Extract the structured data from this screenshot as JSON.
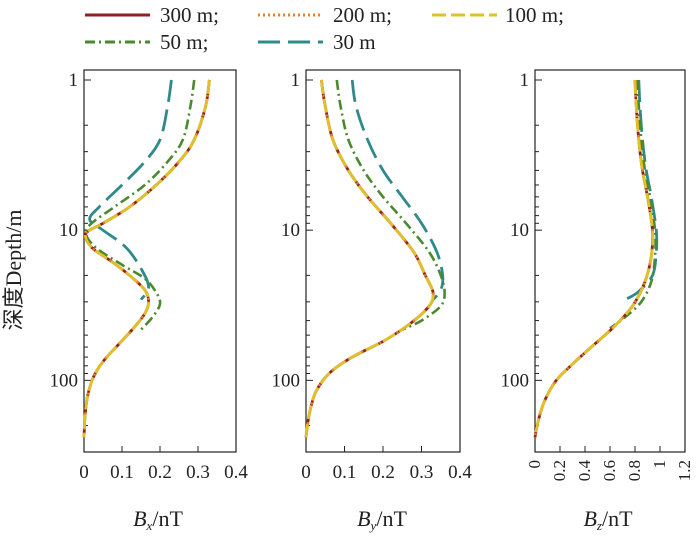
{
  "chart_data": [
    {
      "type": "line",
      "xlabel_symbol": "B",
      "xlabel_sub": "x",
      "xlabel_unit": "/nT",
      "xlim": [
        0,
        0.4
      ],
      "xticks": [
        0,
        0.1,
        0.2,
        0.3,
        0.4
      ],
      "xtick_labels": [
        "0",
        "0.1",
        "0.2",
        "0.3",
        "0.4"
      ],
      "yscale": "log",
      "yreverse": true,
      "ylim": [
        1,
        300
      ],
      "yticks": [
        1,
        10,
        100
      ],
      "ytick_labels": [
        "1",
        "10",
        "100"
      ],
      "series": [
        {
          "name": "300 m;",
          "points": [
            [
              0.33,
              1
            ],
            [
              0.32,
              1.5
            ],
            [
              0.29,
              2.5
            ],
            [
              0.25,
              3.5
            ],
            [
              0.19,
              5
            ],
            [
              0.12,
              7
            ],
            [
              0.05,
              9
            ],
            [
              0.005,
              10.5
            ],
            [
              0.02,
              13
            ],
            [
              0.07,
              16
            ],
            [
              0.12,
              20
            ],
            [
              0.16,
              25
            ],
            [
              0.17,
              30
            ],
            [
              0.16,
              36
            ],
            [
              0.13,
              45
            ],
            [
              0.09,
              58
            ],
            [
              0.05,
              75
            ],
            [
              0.025,
              95
            ],
            [
              0.01,
              125
            ],
            [
              0.003,
              170
            ],
            [
              0,
              240
            ]
          ]
        },
        {
          "name": "200 m;",
          "points": [
            [
              0.33,
              1
            ],
            [
              0.32,
              1.5
            ],
            [
              0.29,
              2.5
            ],
            [
              0.25,
              3.5
            ],
            [
              0.19,
              5
            ],
            [
              0.12,
              7
            ],
            [
              0.05,
              9
            ],
            [
              0.005,
              10.5
            ],
            [
              0.02,
              13
            ],
            [
              0.07,
              16
            ],
            [
              0.12,
              20
            ],
            [
              0.16,
              25
            ],
            [
              0.17,
              30
            ],
            [
              0.16,
              36
            ],
            [
              0.13,
              45
            ],
            [
              0.09,
              58
            ],
            [
              0.05,
              75
            ],
            [
              0.025,
              95
            ],
            [
              0.01,
              125
            ],
            [
              0.003,
              170
            ],
            [
              0,
              240
            ]
          ]
        },
        {
          "name": "100 m;",
          "points": [
            [
              0.33,
              1
            ],
            [
              0.32,
              1.5
            ],
            [
              0.29,
              2.5
            ],
            [
              0.25,
              3.5
            ],
            [
              0.19,
              5
            ],
            [
              0.12,
              7
            ],
            [
              0.05,
              9
            ],
            [
              0.005,
              10.5
            ],
            [
              0.02,
              13
            ],
            [
              0.07,
              16
            ],
            [
              0.12,
              20
            ],
            [
              0.16,
              25
            ],
            [
              0.17,
              30
            ],
            [
              0.16,
              36
            ],
            [
              0.13,
              45
            ],
            [
              0.09,
              58
            ],
            [
              0.05,
              75
            ],
            [
              0.025,
              95
            ],
            [
              0.01,
              125
            ],
            [
              0.003,
              170
            ],
            [
              0,
              240
            ]
          ]
        },
        {
          "name": "50 m;",
          "points": [
            [
              0.29,
              1
            ],
            [
              0.28,
              1.5
            ],
            [
              0.26,
              2.5
            ],
            [
              0.22,
              3.5
            ],
            [
              0.16,
              5
            ],
            [
              0.08,
              7
            ],
            [
              0.02,
              9
            ],
            [
              0.005,
              10.5
            ],
            [
              0.03,
              13
            ],
            [
              0.1,
              17
            ],
            [
              0.16,
              21
            ],
            [
              0.19,
              26
            ],
            [
              0.2,
              31
            ],
            [
              0.18,
              38
            ],
            [
              0.15,
              46
            ]
          ]
        },
        {
          "name": "30 m",
          "points": [
            [
              0.23,
              1
            ],
            [
              0.22,
              1.5
            ],
            [
              0.2,
              2.5
            ],
            [
              0.16,
              3.5
            ],
            [
              0.1,
              5
            ],
            [
              0.04,
              7
            ],
            [
              0.015,
              8.5
            ],
            [
              0.05,
              10
            ],
            [
              0.11,
              13
            ],
            [
              0.15,
              18
            ],
            [
              0.17,
              24
            ],
            [
              0.15,
              29
            ]
          ]
        }
      ]
    },
    {
      "type": "line",
      "xlabel_symbol": "B",
      "xlabel_sub": "y",
      "xlabel_unit": "/nT",
      "xlim": [
        0,
        0.4
      ],
      "xticks": [
        0,
        0.1,
        0.2,
        0.3,
        0.4
      ],
      "xtick_labels": [
        "0",
        "0.1",
        "0.2",
        "0.3",
        "0.4"
      ],
      "yscale": "log",
      "yreverse": true,
      "ylim": [
        1,
        300
      ],
      "yticks": [
        1,
        10,
        100
      ],
      "ytick_labels": [
        "1",
        "10",
        "100"
      ],
      "series": [
        {
          "name": "300 m;",
          "points": [
            [
              0.04,
              1
            ],
            [
              0.05,
              1.5
            ],
            [
              0.07,
              2.5
            ],
            [
              0.11,
              4
            ],
            [
              0.16,
              6
            ],
            [
              0.22,
              9
            ],
            [
              0.28,
              14
            ],
            [
              0.31,
              20
            ],
            [
              0.33,
              26
            ],
            [
              0.32,
              32
            ],
            [
              0.27,
              42
            ],
            [
              0.2,
              55
            ],
            [
              0.12,
              70
            ],
            [
              0.06,
              90
            ],
            [
              0.025,
              120
            ],
            [
              0.008,
              170
            ],
            [
              0,
              240
            ]
          ]
        },
        {
          "name": "200 m;",
          "points": [
            [
              0.04,
              1
            ],
            [
              0.05,
              1.5
            ],
            [
              0.07,
              2.5
            ],
            [
              0.11,
              4
            ],
            [
              0.16,
              6
            ],
            [
              0.22,
              9
            ],
            [
              0.28,
              14
            ],
            [
              0.31,
              20
            ],
            [
              0.33,
              26
            ],
            [
              0.32,
              32
            ],
            [
              0.27,
              42
            ],
            [
              0.2,
              55
            ],
            [
              0.12,
              70
            ],
            [
              0.06,
              90
            ],
            [
              0.025,
              120
            ],
            [
              0.008,
              170
            ],
            [
              0,
              240
            ]
          ]
        },
        {
          "name": "100 m;",
          "points": [
            [
              0.04,
              1
            ],
            [
              0.05,
              1.5
            ],
            [
              0.07,
              2.5
            ],
            [
              0.11,
              4
            ],
            [
              0.16,
              6
            ],
            [
              0.22,
              9
            ],
            [
              0.28,
              14
            ],
            [
              0.31,
              20
            ],
            [
              0.33,
              26
            ],
            [
              0.32,
              32
            ],
            [
              0.27,
              42
            ],
            [
              0.2,
              55
            ],
            [
              0.12,
              70
            ],
            [
              0.06,
              90
            ],
            [
              0.025,
              120
            ],
            [
              0.008,
              170
            ],
            [
              0,
              240
            ]
          ]
        },
        {
          "name": "50 m;",
          "points": [
            [
              0.08,
              1
            ],
            [
              0.09,
              1.5
            ],
            [
              0.11,
              2.5
            ],
            [
              0.15,
              4
            ],
            [
              0.2,
              6
            ],
            [
              0.26,
              9
            ],
            [
              0.32,
              14
            ],
            [
              0.35,
              20
            ],
            [
              0.36,
              26
            ],
            [
              0.35,
              32
            ],
            [
              0.3,
              40
            ],
            [
              0.25,
              46
            ]
          ]
        },
        {
          "name": "30 m",
          "points": [
            [
              0.12,
              1
            ],
            [
              0.13,
              1.5
            ],
            [
              0.16,
              2.5
            ],
            [
              0.2,
              4
            ],
            [
              0.25,
              6
            ],
            [
              0.3,
              9
            ],
            [
              0.34,
              14
            ],
            [
              0.355,
              20
            ],
            [
              0.35,
              25
            ],
            [
              0.33,
              29
            ]
          ]
        }
      ]
    },
    {
      "type": "line",
      "xlabel_symbol": "B",
      "xlabel_sub": "z",
      "xlabel_unit": "/nT",
      "xlim": [
        0,
        1.2
      ],
      "xticks": [
        0,
        0.2,
        0.4,
        0.6,
        0.8,
        1,
        1.2
      ],
      "xtick_labels": [
        "0",
        "0.2",
        "0.4",
        "0.6",
        "0.8",
        "1",
        "1.2"
      ],
      "yscale": "log",
      "yreverse": true,
      "ylim": [
        1,
        300
      ],
      "yticks": [
        1,
        10,
        100
      ],
      "ytick_labels": [
        "1",
        "10",
        "100"
      ],
      "series": [
        {
          "name": "300 m;",
          "points": [
            [
              0.8,
              1
            ],
            [
              0.81,
              1.5
            ],
            [
              0.83,
              2.5
            ],
            [
              0.86,
              4
            ],
            [
              0.9,
              6
            ],
            [
              0.94,
              10
            ],
            [
              0.93,
              15
            ],
            [
              0.88,
              22
            ],
            [
              0.78,
              32
            ],
            [
              0.62,
              45
            ],
            [
              0.45,
              60
            ],
            [
              0.3,
              78
            ],
            [
              0.17,
              100
            ],
            [
              0.08,
              135
            ],
            [
              0.03,
              180
            ],
            [
              0,
              240
            ]
          ]
        },
        {
          "name": "200 m;",
          "points": [
            [
              0.8,
              1
            ],
            [
              0.81,
              1.5
            ],
            [
              0.83,
              2.5
            ],
            [
              0.86,
              4
            ],
            [
              0.9,
              6
            ],
            [
              0.94,
              10
            ],
            [
              0.93,
              15
            ],
            [
              0.88,
              22
            ],
            [
              0.78,
              32
            ],
            [
              0.62,
              45
            ],
            [
              0.45,
              60
            ],
            [
              0.3,
              78
            ],
            [
              0.17,
              100
            ],
            [
              0.08,
              135
            ],
            [
              0.03,
              180
            ],
            [
              0,
              240
            ]
          ]
        },
        {
          "name": "100 m;",
          "points": [
            [
              0.8,
              1
            ],
            [
              0.81,
              1.5
            ],
            [
              0.83,
              2.5
            ],
            [
              0.86,
              4
            ],
            [
              0.9,
              6
            ],
            [
              0.94,
              10
            ],
            [
              0.93,
              15
            ],
            [
              0.88,
              22
            ],
            [
              0.78,
              32
            ],
            [
              0.62,
              45
            ],
            [
              0.45,
              60
            ],
            [
              0.3,
              78
            ],
            [
              0.17,
              100
            ],
            [
              0.08,
              135
            ],
            [
              0.03,
              180
            ],
            [
              0,
              240
            ]
          ]
        },
        {
          "name": "50 m;",
          "points": [
            [
              0.82,
              1
            ],
            [
              0.83,
              1.5
            ],
            [
              0.85,
              2.5
            ],
            [
              0.88,
              4
            ],
            [
              0.92,
              6
            ],
            [
              0.96,
              10
            ],
            [
              0.96,
              15
            ],
            [
              0.93,
              22
            ],
            [
              0.85,
              30
            ],
            [
              0.72,
              38
            ],
            [
              0.6,
              45
            ]
          ]
        },
        {
          "name": "30 m",
          "points": [
            [
              0.83,
              1
            ],
            [
              0.84,
              1.5
            ],
            [
              0.86,
              2.5
            ],
            [
              0.89,
              4
            ],
            [
              0.93,
              6
            ],
            [
              0.97,
              10
            ],
            [
              0.97,
              14
            ],
            [
              0.94,
              20
            ],
            [
              0.82,
              26
            ],
            [
              0.72,
              29
            ]
          ]
        }
      ]
    }
  ],
  "y_axis_title": "深度Depth/m",
  "legend": [
    {
      "label": "300 m;",
      "color": "#8b2323",
      "style": "solid"
    },
    {
      "label": "200 m;",
      "color": "#f07f2a",
      "style": "dotted"
    },
    {
      "label": "100 m;",
      "color": "#e0c12a",
      "style": "dashed"
    },
    {
      "label": "50 m;",
      "color": "#4a8a2e",
      "style": "dashdot"
    },
    {
      "label": "30 m",
      "color": "#2f8a8a",
      "style": "longdash"
    }
  ]
}
